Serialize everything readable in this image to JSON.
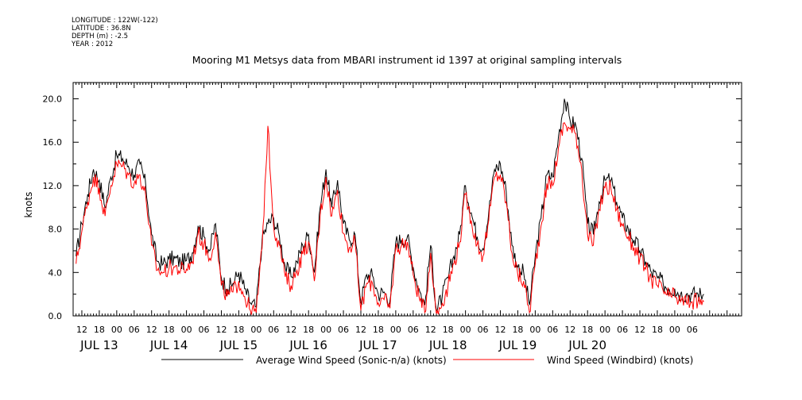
{
  "header": {
    "longitude": "LONGITUDE : 122W(-122)",
    "latitude": "LATITUDE : 36.8N",
    "depth": "DEPTH (m) : -2.5",
    "year": "YEAR : 2012"
  },
  "chart_data": {
    "type": "line",
    "title": "Mooring M1 Metsys data from MBARI instrument id 1397 at original sampling intervals",
    "xlabel": "",
    "ylabel": "knots",
    "x_unit": "hours since 2012-07-13 00:00",
    "xlim": [
      -15,
      215
    ],
    "ylim": [
      0,
      21.5
    ],
    "y_ticks": [
      0,
      4,
      8,
      12,
      16,
      20
    ],
    "y_tick_labels": [
      "0.0",
      "4.0",
      "8.0",
      "12.0",
      "16.0",
      "20.0"
    ],
    "x_hour_ticks": [
      {
        "t": -12,
        "label": "12"
      },
      {
        "t": -6,
        "label": "18"
      },
      {
        "t": 0,
        "label": "00"
      },
      {
        "t": 6,
        "label": "06"
      },
      {
        "t": 12,
        "label": "12"
      },
      {
        "t": 18,
        "label": "18"
      },
      {
        "t": 24,
        "label": "00"
      },
      {
        "t": 30,
        "label": "06"
      },
      {
        "t": 36,
        "label": "12"
      },
      {
        "t": 42,
        "label": "18"
      },
      {
        "t": 48,
        "label": "00"
      },
      {
        "t": 54,
        "label": "06"
      },
      {
        "t": 60,
        "label": "12"
      },
      {
        "t": 66,
        "label": "18"
      },
      {
        "t": 72,
        "label": "00"
      },
      {
        "t": 78,
        "label": "06"
      },
      {
        "t": 84,
        "label": "12"
      },
      {
        "t": 90,
        "label": "18"
      },
      {
        "t": 96,
        "label": "00"
      },
      {
        "t": 102,
        "label": "06"
      },
      {
        "t": 108,
        "label": "12"
      },
      {
        "t": 114,
        "label": "18"
      },
      {
        "t": 120,
        "label": "00"
      },
      {
        "t": 126,
        "label": "06"
      },
      {
        "t": 132,
        "label": "12"
      },
      {
        "t": 138,
        "label": "18"
      },
      {
        "t": 144,
        "label": "00"
      },
      {
        "t": 150,
        "label": "06"
      },
      {
        "t": 156,
        "label": "12"
      },
      {
        "t": 162,
        "label": "18"
      },
      {
        "t": 168,
        "label": "00"
      },
      {
        "t": 174,
        "label": "06"
      },
      {
        "t": 180,
        "label": "12"
      },
      {
        "t": 186,
        "label": "18"
      },
      {
        "t": 192,
        "label": "00"
      },
      {
        "t": 198,
        "label": "06"
      }
    ],
    "x_day_labels": [
      {
        "t": -6,
        "label": "JUL 13"
      },
      {
        "t": 18,
        "label": "JUL 14"
      },
      {
        "t": 42,
        "label": "JUL 15"
      },
      {
        "t": 66,
        "label": "JUL 16"
      },
      {
        "t": 90,
        "label": "JUL 17"
      },
      {
        "t": 114,
        "label": "JUL 18"
      },
      {
        "t": 138,
        "label": "JUL 19"
      },
      {
        "t": 162,
        "label": "JUL 20"
      }
    ],
    "series": [
      {
        "name": "Average Wind Speed (Sonic-n/a) (knots)",
        "color": "#000000",
        "x": [
          -14,
          -12,
          -10,
          -8,
          -6,
          -4,
          -2,
          0,
          2,
          4,
          6,
          8,
          10,
          12,
          14,
          16,
          18,
          20,
          22,
          24,
          26,
          28,
          30,
          32,
          34,
          36,
          38,
          40,
          42,
          44,
          46,
          48,
          50,
          52,
          54,
          56,
          58,
          60,
          62,
          64,
          66,
          68,
          70,
          72,
          74,
          76,
          78,
          80,
          82,
          84,
          86,
          88,
          90,
          92,
          94,
          96,
          98,
          100,
          102,
          104,
          106,
          108,
          110,
          112,
          114,
          116,
          118,
          120,
          122,
          124,
          126,
          128,
          130,
          132,
          134,
          136,
          138,
          140,
          142,
          144,
          146,
          148,
          150,
          152,
          154,
          156,
          158,
          160,
          162,
          164,
          166,
          168,
          170,
          172,
          174,
          176,
          178,
          180,
          182,
          184,
          186,
          188,
          190,
          192,
          194,
          196,
          198,
          200,
          202
        ],
        "y": [
          5.5,
          8.5,
          11.2,
          13.5,
          12.5,
          10.0,
          12.8,
          14.8,
          14.5,
          13.8,
          13.0,
          14.0,
          12.0,
          7.5,
          5.0,
          4.8,
          5.2,
          5.3,
          4.9,
          5.1,
          5.8,
          8.3,
          7.3,
          6.0,
          8.5,
          3.5,
          2.5,
          3.0,
          4.0,
          2.5,
          1.2,
          0.8,
          7.0,
          8.5,
          9.0,
          7.3,
          4.5,
          3.6,
          5.0,
          6.5,
          7.5,
          4.0,
          10.0,
          13.5,
          10.0,
          12.5,
          8.5,
          7.0,
          7.5,
          1.2,
          3.8,
          3.7,
          2.0,
          2.2,
          1.4,
          6.8,
          7.0,
          7.3,
          4.5,
          2.5,
          1.0,
          6.5,
          0.5,
          1.8,
          3.5,
          5.5,
          7.5,
          12.0,
          9.5,
          7.3,
          6.2,
          9.5,
          13.5,
          14.0,
          11.5,
          6.5,
          4.5,
          4.0,
          1.0,
          5.5,
          9.0,
          13.0,
          12.8,
          16.5,
          20.0,
          18.0,
          17.5,
          14.5,
          8.5,
          7.5,
          10.5,
          12.5,
          12.5,
          10.5,
          9.0,
          8.0,
          7.0,
          6.0,
          5.0,
          4.0,
          3.5,
          3.0,
          2.5,
          2.5,
          2.0,
          2.0,
          2.0,
          2.0,
          2.0
        ],
        "x_end": 202
      },
      {
        "name": "Wind Speed (Windbird) (knots)",
        "color": "#ff0000",
        "x": [
          -14,
          -12,
          -10,
          -8,
          -6,
          -4,
          -2,
          0,
          2,
          4,
          6,
          8,
          10,
          12,
          14,
          16,
          18,
          20,
          22,
          24,
          26,
          28,
          30,
          32,
          34,
          36,
          38,
          40,
          42,
          44,
          46,
          48,
          50,
          52,
          54,
          56,
          58,
          60,
          62,
          64,
          66,
          68,
          70,
          72,
          74,
          76,
          78,
          80,
          82,
          84,
          86,
          88,
          90,
          92,
          94,
          96,
          98,
          100,
          102,
          104,
          106,
          108,
          110,
          112,
          114,
          116,
          118,
          120,
          122,
          124,
          126,
          128,
          130,
          132,
          134,
          136,
          138,
          140,
          142,
          144,
          146,
          148,
          150,
          152,
          154,
          156,
          158,
          160,
          162,
          164,
          166,
          168,
          170,
          172,
          174,
          176,
          178,
          180,
          182,
          184,
          186,
          188,
          190,
          192,
          194,
          196,
          198,
          200,
          202
        ],
        "y": [
          4.8,
          7.8,
          10.5,
          12.8,
          11.8,
          9.2,
          12.0,
          14.0,
          13.8,
          13.0,
          12.2,
          13.0,
          11.0,
          6.5,
          4.2,
          4.0,
          4.4,
          4.5,
          4.2,
          4.3,
          5.0,
          7.6,
          6.6,
          5.3,
          7.7,
          2.8,
          1.8,
          2.2,
          3.2,
          1.8,
          0.5,
          0.3,
          6.2,
          17.5,
          8.2,
          6.5,
          3.6,
          2.8,
          4.2,
          5.7,
          6.8,
          3.2,
          9.2,
          12.8,
          9.2,
          11.6,
          7.6,
          6.3,
          6.8,
          0.5,
          3.0,
          3.0,
          1.2,
          1.5,
          0.7,
          6.2,
          6.5,
          6.8,
          3.8,
          1.8,
          0.3,
          5.8,
          0.2,
          1.2,
          2.8,
          4.8,
          6.8,
          11.2,
          8.8,
          6.6,
          5.5,
          8.8,
          12.8,
          13.0,
          10.5,
          5.8,
          3.8,
          3.2,
          0.3,
          4.8,
          8.3,
          12.2,
          12.0,
          15.5,
          17.8,
          17.2,
          16.8,
          13.5,
          7.5,
          6.5,
          9.8,
          11.8,
          11.8,
          9.8,
          8.3,
          7.3,
          6.3,
          5.3,
          4.3,
          3.3,
          2.8,
          2.3,
          1.8,
          1.8,
          1.3,
          1.3,
          1.3,
          1.3,
          1.3
        ],
        "x_end": 202
      }
    ],
    "legend_placement": "bottom",
    "grid": false
  }
}
